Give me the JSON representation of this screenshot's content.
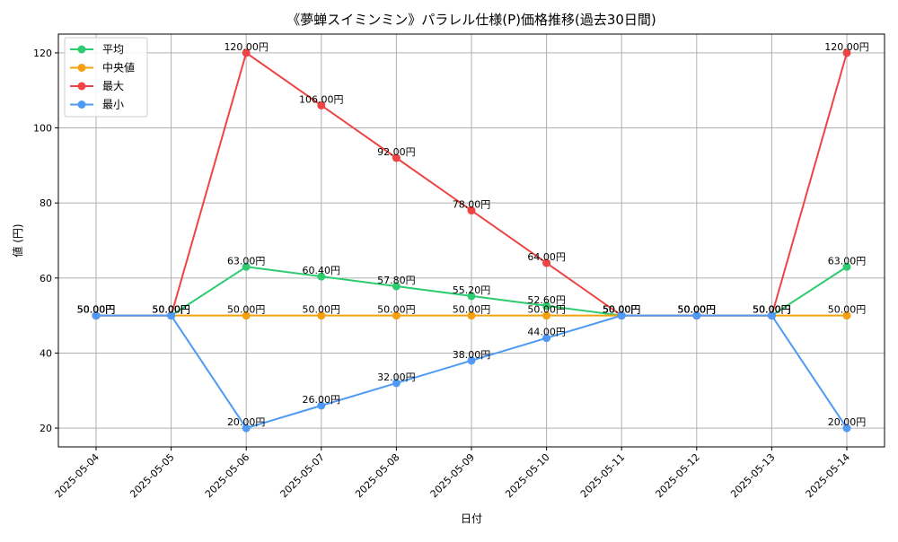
{
  "chart_data": {
    "type": "line",
    "title": "《夢蝉スイミンミン》パラレル仕様(P)価格推移(過去30日間)",
    "xlabel": "日付",
    "ylabel": "値 (円)",
    "categories": [
      "2025-05-04",
      "2025-05-05",
      "2025-05-06",
      "2025-05-07",
      "2025-05-08",
      "2025-05-09",
      "2025-05-10",
      "2025-05-11",
      "2025-05-12",
      "2025-05-13",
      "2025-05-14"
    ],
    "ylim": [
      15,
      125
    ],
    "yticks": [
      20,
      40,
      60,
      80,
      100,
      120
    ],
    "grid": true,
    "legend_position": "top-left",
    "label_suffix": "円",
    "series": [
      {
        "name": "平均",
        "color": "#2ecc71",
        "values": [
          50,
          50,
          63,
          60.4,
          57.8,
          55.2,
          52.6,
          50,
          50,
          50,
          63
        ]
      },
      {
        "name": "中央値",
        "color": "#f5a00f",
        "values": [
          50,
          50,
          50,
          50,
          50,
          50,
          50,
          50,
          50,
          50,
          50
        ]
      },
      {
        "name": "最大",
        "color": "#ef4444",
        "values": [
          50,
          50,
          120,
          106,
          92,
          78,
          64,
          50,
          50,
          50,
          120
        ]
      },
      {
        "name": "最小",
        "color": "#4e9af5",
        "values": [
          50,
          50,
          20,
          26,
          32,
          38,
          44,
          50,
          50,
          50,
          20
        ]
      }
    ]
  }
}
